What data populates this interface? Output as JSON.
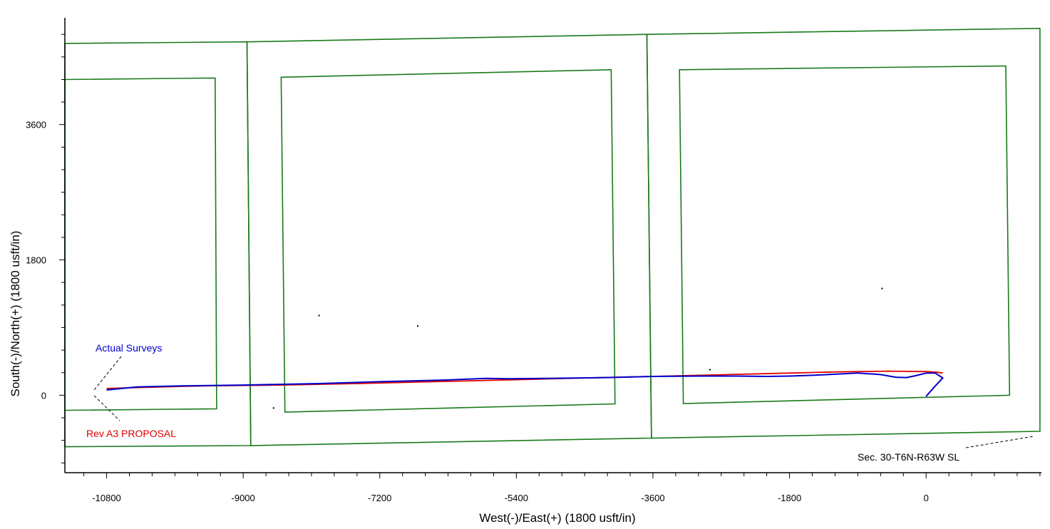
{
  "chart_data": {
    "type": "line",
    "title": "",
    "xlabel": "West(-)/East(+) (1800 usft/in)",
    "ylabel": "South(-)/North(+) (1800 usft/in)",
    "xlim": [
      -11350,
      1520
    ],
    "ylim": [
      -1030,
      5020
    ],
    "x_tick_labels": [
      "-10800",
      "-9000",
      "-7200",
      "-5400",
      "-3600",
      "-1800",
      "0"
    ],
    "x_tick_values": [
      -10800,
      -9000,
      -7200,
      -5400,
      -3600,
      -1800,
      0
    ],
    "y_tick_labels": [
      "0",
      "1800",
      "3600"
    ],
    "y_tick_values": [
      0,
      1800,
      3600
    ],
    "grid": false,
    "colors": {
      "lease_lines": "#1a7a1a",
      "actual_surveys": "#0000cc",
      "proposal": "#e00000",
      "annotation": "#000000"
    },
    "annotations": {
      "actual_surveys": "Actual Surveys",
      "proposal": "Rev A3 PROPOSAL",
      "section_label": "Sec. 30-T6N-R63W SL"
    },
    "series": [
      {
        "name": "Actual Surveys",
        "x": [
          0,
          100,
          220,
          120,
          0,
          -140,
          -260,
          -400,
          -600,
          -900,
          -1200,
          -1500,
          -1800,
          -2100,
          -2500,
          -3000,
          -3600,
          -4200,
          -5000,
          -5500,
          -5800,
          -6400,
          -7200,
          -8000,
          -9000,
          -9800,
          -10400,
          -10800
        ],
        "y": [
          -15,
          100,
          230,
          295,
          295,
          260,
          235,
          240,
          275,
          295,
          280,
          265,
          255,
          250,
          255,
          255,
          250,
          235,
          225,
          220,
          225,
          200,
          180,
          155,
          135,
          125,
          110,
          70
        ]
      },
      {
        "name": "Rev A3 PROPOSAL",
        "x": [
          220,
          150,
          0,
          -500,
          -1200,
          -2000,
          -3000,
          -3600,
          -4500,
          -5500,
          -6500,
          -7500,
          -8500,
          -9500,
          -10300,
          -10800
        ],
        "y": [
          295,
          305,
          315,
          320,
          310,
          290,
          265,
          250,
          230,
          205,
          180,
          155,
          135,
          125,
          105,
          90
        ]
      }
    ],
    "lease_polygons": [
      [
        [
          -11350,
          4680
        ],
        [
          -8950,
          4700
        ],
        [
          -8900,
          -670
        ],
        [
          -11350,
          -685
        ]
      ],
      [
        [
          -8950,
          4700
        ],
        [
          -3680,
          4800
        ],
        [
          -3620,
          -570
        ],
        [
          -8900,
          -670
        ]
      ],
      [
        [
          -3680,
          4800
        ],
        [
          1500,
          4880
        ],
        [
          1500,
          -480
        ],
        [
          -3620,
          -570
        ]
      ],
      [
        [
          -11350,
          4200
        ],
        [
          -9370,
          4220
        ],
        [
          -9350,
          -180
        ],
        [
          -11350,
          -200
        ]
      ],
      [
        [
          -8500,
          4230
        ],
        [
          -4150,
          4330
        ],
        [
          -4100,
          -115
        ],
        [
          -8450,
          -225
        ]
      ],
      [
        [
          -3250,
          4330
        ],
        [
          1050,
          4380
        ],
        [
          1100,
          0
        ],
        [
          -3200,
          -110
        ]
      ]
    ],
    "scattered_points": [
      [
        -8000,
        1060
      ],
      [
        -6700,
        920
      ],
      [
        -8600,
        -170
      ],
      [
        -2850,
        340
      ],
      [
        -580,
        1420
      ]
    ]
  }
}
